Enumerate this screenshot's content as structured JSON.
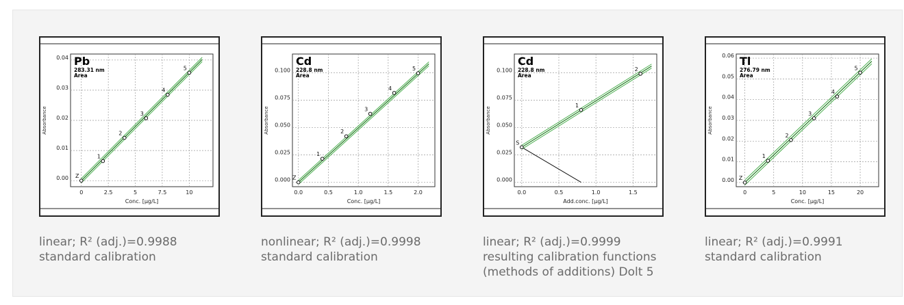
{
  "colors": {
    "fit_line": "#1f7a1f",
    "band": "#4caf50",
    "frame": "#222222",
    "grid": "#9a9a9a",
    "caption": "#6b6b6b",
    "background": "#f4f4f4"
  },
  "chart_data": [
    {
      "type": "line",
      "element": "Pb",
      "wavelength": "283.31 nm",
      "mode": "Area",
      "xlabel": "Conc. [µg/L]",
      "ylabel": "Absorbance",
      "xlim": [
        -1,
        12.2
      ],
      "ylim": [
        -0.002,
        0.042
      ],
      "xticks": [
        0,
        2.5,
        5,
        7.5,
        10
      ],
      "xtick_labels": [
        "0",
        "2.5",
        "5",
        "7.5",
        "10"
      ],
      "yticks": [
        0.0,
        0.01,
        0.02,
        0.03,
        0.04
      ],
      "ytick_labels": [
        "0.00",
        "0.01",
        "0.02",
        "0.03",
        "0.04"
      ],
      "points": [
        {
          "label": "Z",
          "x": 0,
          "y": 0.0
        },
        {
          "label": "1",
          "x": 2,
          "y": 0.0065
        },
        {
          "label": "2",
          "x": 4,
          "y": 0.0142
        },
        {
          "label": "3",
          "x": 6,
          "y": 0.0207
        },
        {
          "label": "4",
          "x": 8,
          "y": 0.0285
        },
        {
          "label": "5",
          "x": 10,
          "y": 0.0358
        }
      ],
      "fit": {
        "x": [
          0,
          11.2
        ],
        "y": [
          0.0,
          0.0402
        ]
      },
      "band_offset": 0.0007,
      "caption": [
        "linear; R² (adj.)=0.9988",
        "standard calibration"
      ]
    },
    {
      "type": "line",
      "element": "Cd",
      "wavelength": "228.8 nm",
      "mode": "Area",
      "xlabel": "Conc. [µg/L]",
      "ylabel": "Absorbance",
      "xlim": [
        -0.1,
        2.28
      ],
      "ylim": [
        -0.004,
        0.117
      ],
      "xticks": [
        0,
        0.5,
        1,
        1.5,
        2
      ],
      "xtick_labels": [
        "0.0",
        "0.5",
        "1.0",
        "1.5",
        "2.0"
      ],
      "yticks": [
        0.0,
        0.025,
        0.05,
        0.075,
        0.1
      ],
      "ytick_labels": [
        "0.000",
        "0.025",
        "0.050",
        "0.075",
        "0.100"
      ],
      "points": [
        {
          "label": "Z",
          "x": 0,
          "y": 0.0
        },
        {
          "label": "1",
          "x": 0.4,
          "y": 0.0215
        },
        {
          "label": "2",
          "x": 0.8,
          "y": 0.042
        },
        {
          "label": "3",
          "x": 1.2,
          "y": 0.0625
        },
        {
          "label": "4",
          "x": 1.6,
          "y": 0.0815
        },
        {
          "label": "5",
          "x": 2.0,
          "y": 0.0995
        }
      ],
      "fit": {
        "x": [
          0,
          2.18
        ],
        "y": [
          0.0,
          0.108
        ]
      },
      "band_offset": 0.0018,
      "caption": [
        "nonlinear; R² (adj.)=0.9998",
        "standard calibration"
      ]
    },
    {
      "type": "line",
      "element": "Cd",
      "wavelength": "228.8 nm",
      "mode": "Area",
      "xlabel": "Add.conc. [µg/L]",
      "ylabel": "Absorbance",
      "xlim": [
        -0.1,
        1.82
      ],
      "ylim": [
        -0.004,
        0.117
      ],
      "xticks": [
        0,
        0.5,
        1,
        1.5
      ],
      "xtick_labels": [
        "0.0",
        "0.5",
        "1.0",
        "1.5"
      ],
      "yticks": [
        0.0,
        0.025,
        0.05,
        0.075,
        0.1
      ],
      "ytick_labels": [
        "0.000",
        "0.025",
        "0.050",
        "0.075",
        "0.100"
      ],
      "points": [
        {
          "label": "S",
          "x": 0,
          "y": 0.032
        },
        {
          "label": "1",
          "x": 0.8,
          "y": 0.066
        },
        {
          "label": "2",
          "x": 1.6,
          "y": 0.099
        }
      ],
      "fit": {
        "x": [
          0,
          1.75
        ],
        "y": [
          0.032,
          0.106
        ]
      },
      "extrapolation": {
        "x": [
          0,
          0.8
        ],
        "y": [
          0.032,
          0.0
        ]
      },
      "band_offset": 0.0018,
      "caption": [
        "linear; R² (adj.)=0.9999",
        "resulting calibration functions",
        "(methods of additions) Dolt 5"
      ]
    },
    {
      "type": "line",
      "element": "Tl",
      "wavelength": "276.79 nm",
      "mode": "Area",
      "xlabel": "Conc. [µg/L]",
      "ylabel": "Absorbance",
      "xlim": [
        -1.5,
        23.2
      ],
      "ylim": [
        -0.002,
        0.062
      ],
      "xticks": [
        0,
        5,
        10,
        15,
        20
      ],
      "xtick_labels": [
        "0",
        "5",
        "10",
        "15",
        "20"
      ],
      "yticks": [
        0.0,
        0.01,
        0.02,
        0.03,
        0.04,
        0.05,
        0.06
      ],
      "ytick_labels": [
        "0.00",
        "0.01",
        "0.02",
        "0.03",
        "0.04",
        "0.05",
        "0.06"
      ],
      "points": [
        {
          "label": "Z",
          "x": 0,
          "y": 0.0
        },
        {
          "label": "1",
          "x": 4,
          "y": 0.0105
        },
        {
          "label": "2",
          "x": 8,
          "y": 0.0205
        },
        {
          "label": "3",
          "x": 12,
          "y": 0.031
        },
        {
          "label": "4",
          "x": 16,
          "y": 0.0415
        },
        {
          "label": "5",
          "x": 20,
          "y": 0.053
        }
      ],
      "fit": {
        "x": [
          0,
          22
        ],
        "y": [
          0.0,
          0.0585
        ]
      },
      "band_offset": 0.0012,
      "caption": [
        "linear; R² (adj.)=0.9991",
        "standard calibration"
      ]
    }
  ]
}
